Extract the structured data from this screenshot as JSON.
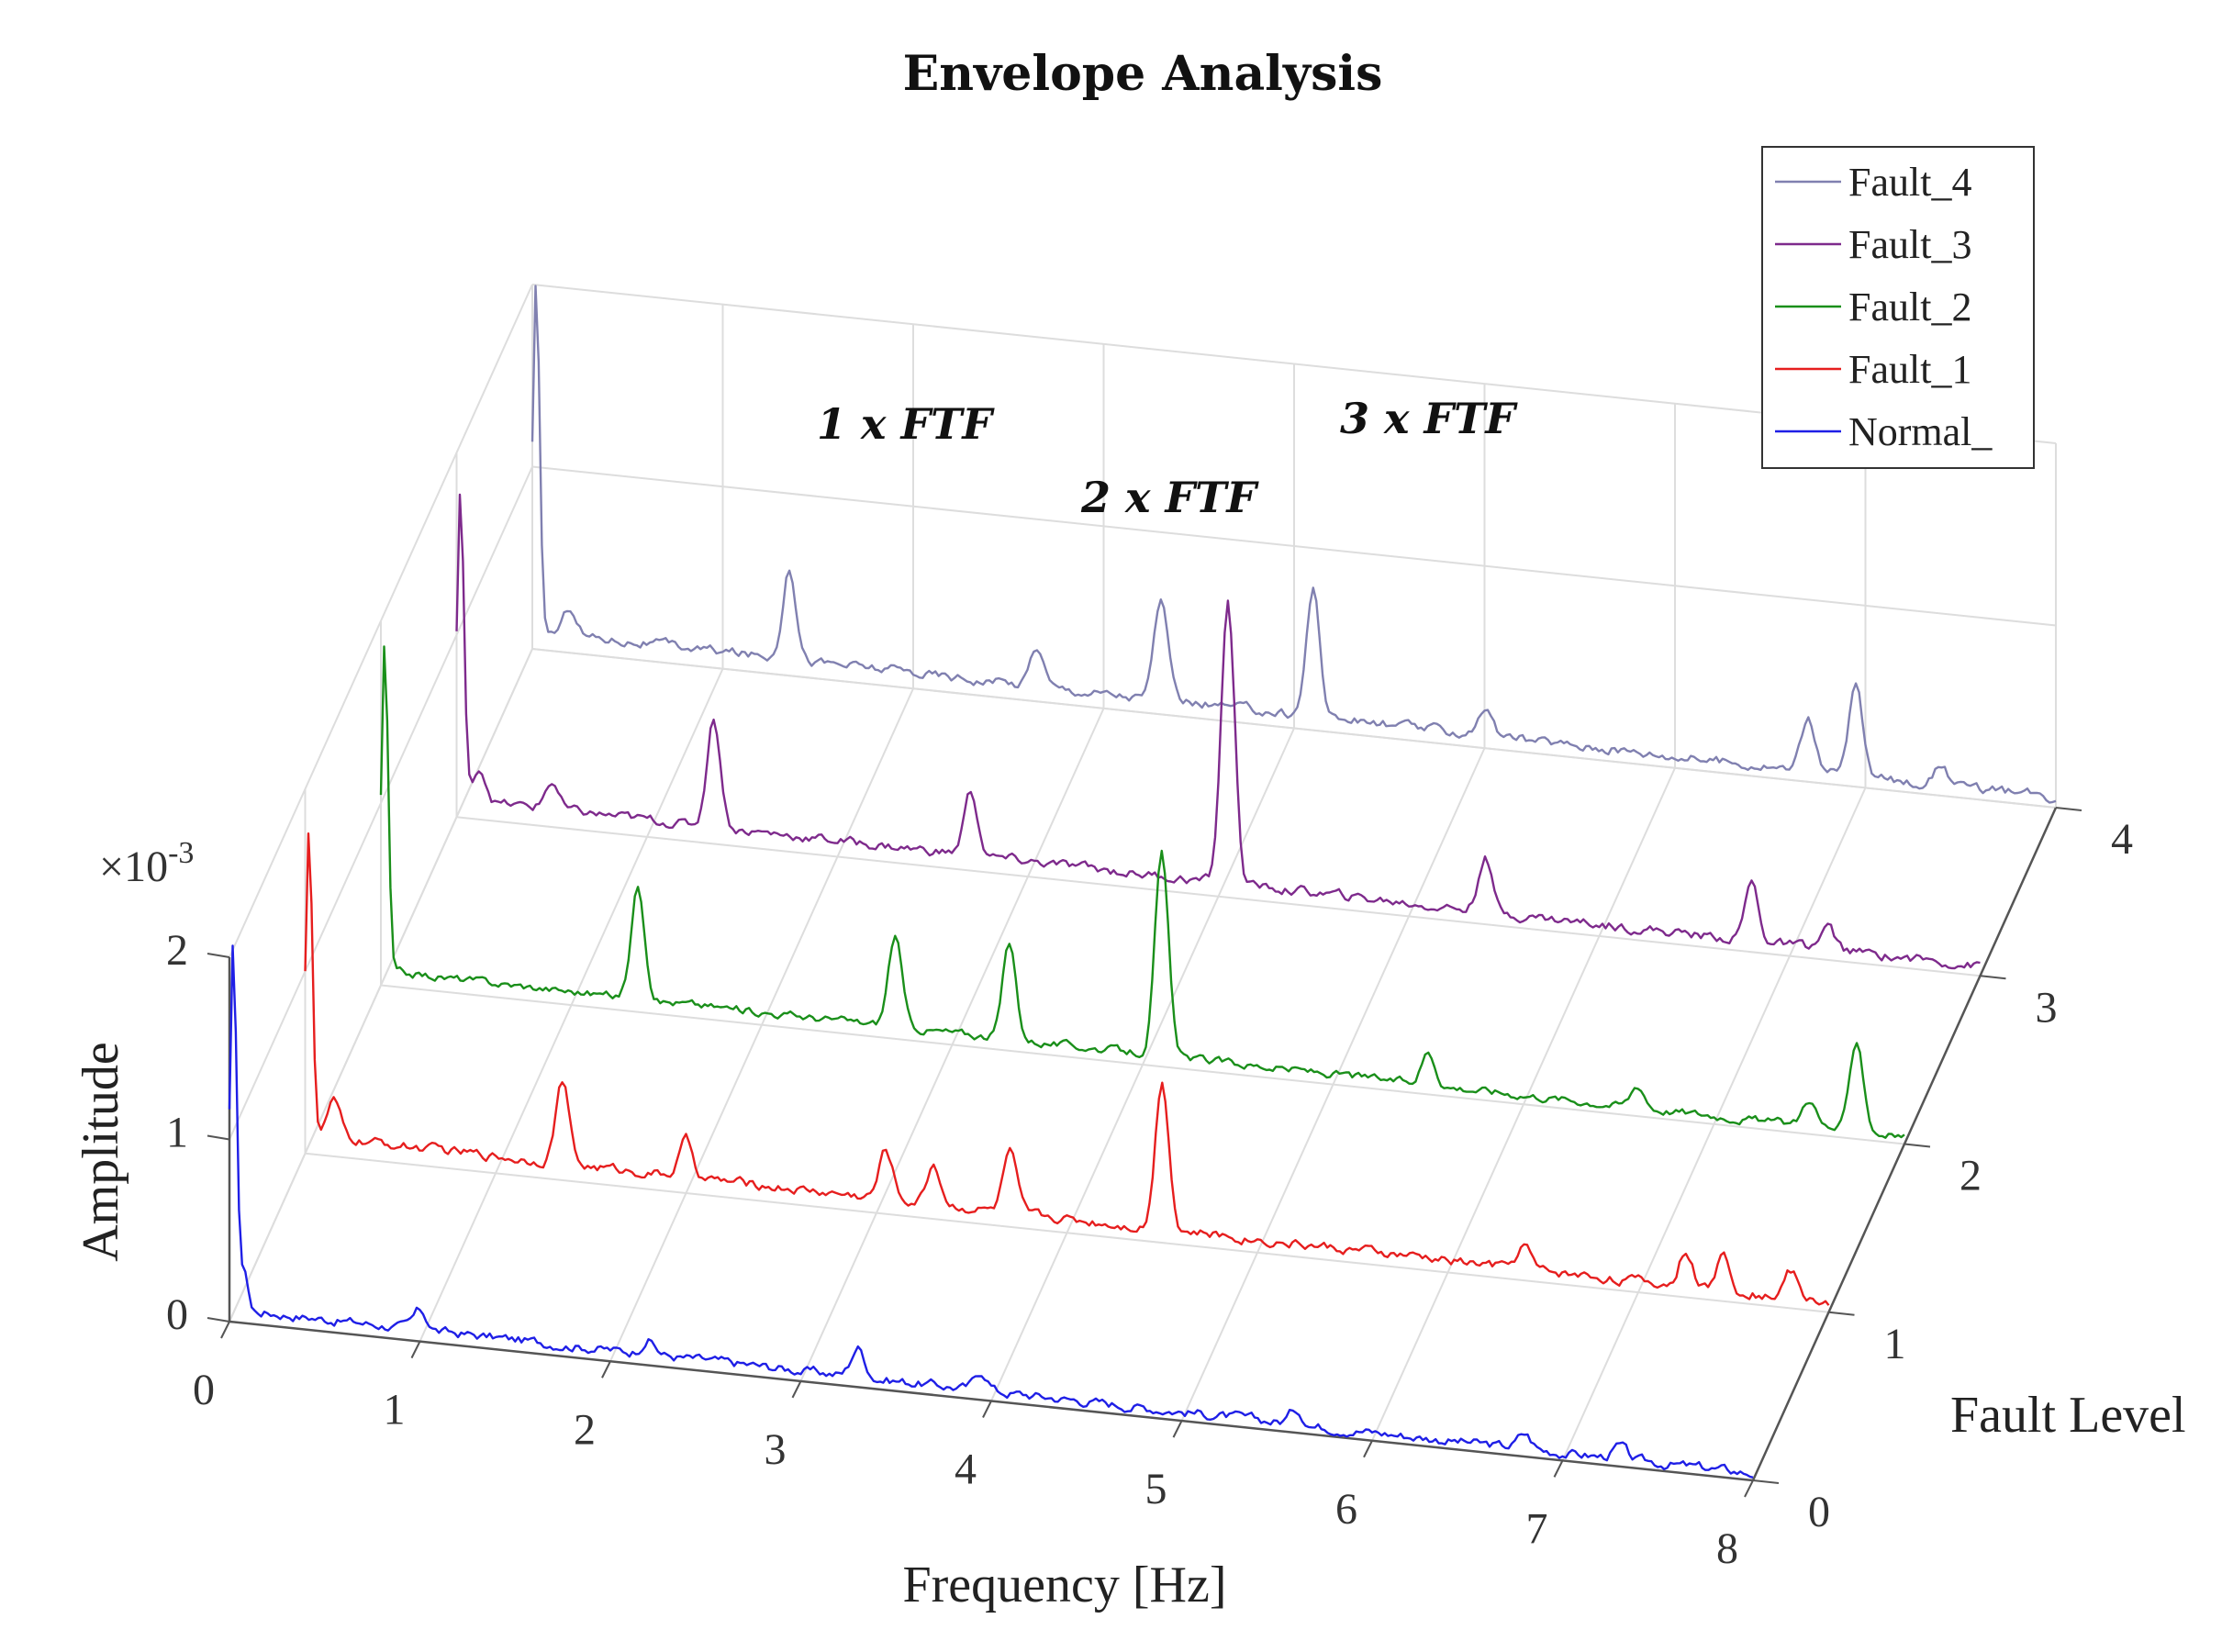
{
  "chart_data": {
    "type": "line",
    "title": "Envelope Analysis",
    "xlabel": "Frequency [Hz]",
    "ylabel": "Fault Level",
    "zlabel": "Amplitude",
    "z_exponent_label": "×10",
    "z_exponent_power": "-3",
    "x_ticks": [
      "0",
      "1",
      "2",
      "3",
      "4",
      "5",
      "6",
      "7",
      "8"
    ],
    "y_ticks": [
      "0",
      "1",
      "2",
      "3",
      "4"
    ],
    "z_ticks": [
      "0",
      "1",
      "2"
    ],
    "xlim": [
      0,
      8
    ],
    "ylim": [
      0,
      4
    ],
    "zlim": [
      0,
      2
    ],
    "grid": true,
    "legend_position": "top-right",
    "legend": [
      "Fault_4",
      "Fault_3",
      "Fault_2",
      "Fault_1",
      "Normal_"
    ],
    "annotations": [
      "1 x FTF",
      "2 x FTF",
      "3 x FTF"
    ],
    "series": [
      {
        "name": "Normal_",
        "level": 0,
        "color": "#1f1fe6",
        "base": 0.07,
        "noise": 0.06,
        "peaks": [
          [
            0.02,
            2.0
          ],
          [
            0.08,
            0.22
          ],
          [
            1.0,
            0.1
          ],
          [
            2.2,
            0.08
          ],
          [
            3.3,
            0.16
          ],
          [
            3.95,
            0.1
          ],
          [
            5.6,
            0.08
          ],
          [
            6.8,
            0.08
          ],
          [
            7.3,
            0.07
          ]
        ]
      },
      {
        "name": "Fault_1",
        "level": 1,
        "color": "#e61e1e",
        "base": 0.1,
        "noise": 0.06,
        "peaks": [
          [
            0.02,
            1.7
          ],
          [
            0.15,
            0.2
          ],
          [
            1.35,
            0.45
          ],
          [
            2.0,
            0.2
          ],
          [
            3.05,
            0.27
          ],
          [
            3.3,
            0.22
          ],
          [
            3.7,
            0.33
          ],
          [
            4.5,
            0.82
          ],
          [
            6.4,
            0.13
          ],
          [
            7.25,
            0.2
          ],
          [
            7.45,
            0.2
          ],
          [
            7.8,
            0.15
          ]
        ]
      },
      {
        "name": "Fault_2",
        "level": 2,
        "color": "#1a8f1a",
        "base": 0.08,
        "noise": 0.05,
        "peaks": [
          [
            0.02,
            1.8
          ],
          [
            1.35,
            0.62
          ],
          [
            2.7,
            0.5
          ],
          [
            3.3,
            0.52
          ],
          [
            4.1,
            1.1
          ],
          [
            5.5,
            0.18
          ],
          [
            6.6,
            0.12
          ],
          [
            7.5,
            0.15
          ],
          [
            7.75,
            0.5
          ]
        ]
      },
      {
        "name": "Fault_3",
        "level": 3,
        "color": "#7e2a8c",
        "base": 0.1,
        "noise": 0.06,
        "peaks": [
          [
            0.02,
            1.7
          ],
          [
            0.12,
            0.18
          ],
          [
            0.5,
            0.15
          ],
          [
            1.35,
            0.6
          ],
          [
            2.7,
            0.35
          ],
          [
            4.05,
            1.55
          ],
          [
            5.4,
            0.3
          ],
          [
            6.8,
            0.32
          ],
          [
            7.2,
            0.12
          ]
        ]
      },
      {
        "name": "Fault_4",
        "level": 4,
        "color": "#8080b0",
        "base": 0.1,
        "noise": 0.06,
        "peaks": [
          [
            0.02,
            1.9
          ],
          [
            0.2,
            0.15
          ],
          [
            1.35,
            0.5
          ],
          [
            2.65,
            0.22
          ],
          [
            3.3,
            0.55
          ],
          [
            4.1,
            0.7
          ],
          [
            5.0,
            0.15
          ],
          [
            6.7,
            0.3
          ],
          [
            6.95,
            0.5
          ],
          [
            7.4,
            0.12
          ]
        ]
      }
    ]
  }
}
